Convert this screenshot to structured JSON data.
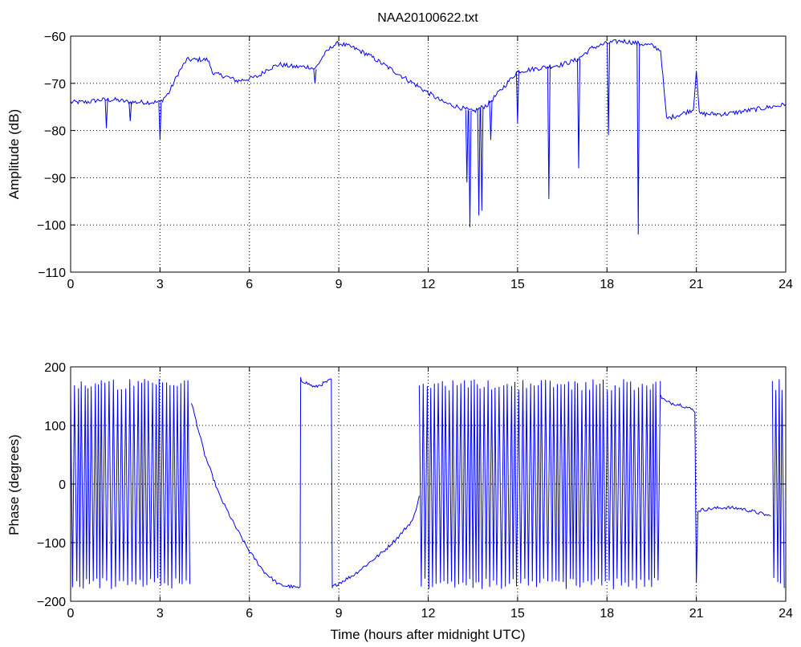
{
  "chart_data": [
    {
      "type": "line",
      "title": "NAA20100622.txt",
      "xlabel": "",
      "ylabel": "Amplitude (dB)",
      "xlim": [
        0,
        24
      ],
      "ylim": [
        -110,
        -60
      ],
      "xticks": [
        0,
        3,
        6,
        9,
        12,
        15,
        18,
        21,
        24
      ],
      "yticks": [
        -110,
        -100,
        -90,
        -80,
        -70,
        -60
      ],
      "ytick_labels": [
        "−110",
        "−100",
        "−90",
        "−80",
        "−70",
        "−60"
      ],
      "grid": true,
      "series_color": "#0000ff",
      "series": [
        {
          "x": [
            0,
            0.5,
            1.0,
            1.5,
            2.0,
            2.5,
            3.0,
            3.3,
            3.6,
            3.9,
            4.2,
            4.6,
            4.8,
            5.2,
            5.6,
            6.0,
            6.3,
            6.6,
            7.0,
            7.5,
            8.0,
            8.2,
            8.5,
            8.8,
            9.0,
            9.5,
            10.0,
            10.5,
            11.0,
            11.5,
            12.0,
            12.5,
            13.0,
            13.5,
            14.0,
            14.5,
            15.0,
            15.5,
            16.0,
            16.5,
            17.0,
            17.5,
            18.0,
            18.5,
            19.0,
            19.5,
            19.8,
            20.0,
            20.5,
            20.9,
            21.0,
            21.1,
            21.5,
            22.0,
            22.5,
            23.0,
            23.5,
            24.0
          ],
          "y": [
            -74,
            -74,
            -73.5,
            -73.5,
            -74,
            -74,
            -74,
            -72,
            -68,
            -65,
            -65,
            -65,
            -68,
            -68.5,
            -69.5,
            -69,
            -68.5,
            -67,
            -66,
            -66.5,
            -66.5,
            -67,
            -64,
            -62,
            -61.5,
            -62.5,
            -64,
            -66,
            -68,
            -70,
            -72,
            -74,
            -75,
            -76,
            -74.5,
            -71,
            -67.5,
            -67,
            -66.5,
            -66,
            -65,
            -62.5,
            -61.5,
            -61,
            -61.5,
            -62,
            -63,
            -77.5,
            -76.5,
            -75.5,
            -67,
            -76.5,
            -76.5,
            -76.5,
            -76,
            -75.5,
            -75,
            -74.5
          ]
        }
      ],
      "dips": [
        {
          "x": 1.2,
          "y": -79.5
        },
        {
          "x": 2.0,
          "y": -78
        },
        {
          "x": 3.0,
          "y": -82
        },
        {
          "x": 8.2,
          "y": -70
        },
        {
          "x": 13.3,
          "y": -91
        },
        {
          "x": 13.4,
          "y": -100.5
        },
        {
          "x": 13.7,
          "y": -98
        },
        {
          "x": 13.8,
          "y": -97
        },
        {
          "x": 14.1,
          "y": -82
        },
        {
          "x": 15.0,
          "y": -78.5
        },
        {
          "x": 16.05,
          "y": -94.5
        },
        {
          "x": 17.05,
          "y": -88
        },
        {
          "x": 18.05,
          "y": -81
        },
        {
          "x": 19.05,
          "y": -102
        }
      ]
    },
    {
      "type": "line",
      "title": "",
      "xlabel": "Time (hours after midnight UTC)",
      "ylabel": "Phase (degrees)",
      "xlim": [
        0,
        24
      ],
      "ylim": [
        -200,
        200
      ],
      "xticks": [
        0,
        3,
        6,
        9,
        12,
        15,
        18,
        21,
        24
      ],
      "yticks": [
        -200,
        -100,
        0,
        100,
        200
      ],
      "ytick_labels": [
        "−200",
        "−100",
        "0",
        "100",
        "200"
      ],
      "grid": true,
      "series_color": "#0000ff",
      "wrapped_segments": [
        {
          "x": [
            0.0,
            4.05
          ]
        },
        {
          "x": [
            11.7,
            19.8
          ]
        },
        {
          "x": [
            23.55,
            24.0
          ]
        }
      ],
      "series": [
        {
          "x": [
            4.05,
            4.2,
            4.5,
            5.0,
            5.5,
            6.0,
            6.5,
            7.0,
            7.4,
            7.7,
            7.72,
            7.75,
            8.2,
            8.75,
            8.78,
            8.8,
            9.5,
            10.0,
            10.5,
            11.0,
            11.5,
            11.7
          ],
          "y": [
            140,
            110,
            50,
            -20,
            -70,
            -115,
            -150,
            -172,
            -175,
            -178,
            180,
            177,
            165,
            178,
            -178,
            -175,
            -155,
            -135,
            -115,
            -90,
            -60,
            -20
          ]
        },
        {
          "x": [
            19.8,
            20.0,
            20.5,
            20.95,
            21.0,
            21.05,
            21.5,
            22.0,
            22.5,
            23.0,
            23.5
          ],
          "y": [
            150,
            140,
            135,
            125,
            -170,
            -45,
            -42,
            -40,
            -42,
            -48,
            -55
          ]
        }
      ]
    }
  ]
}
